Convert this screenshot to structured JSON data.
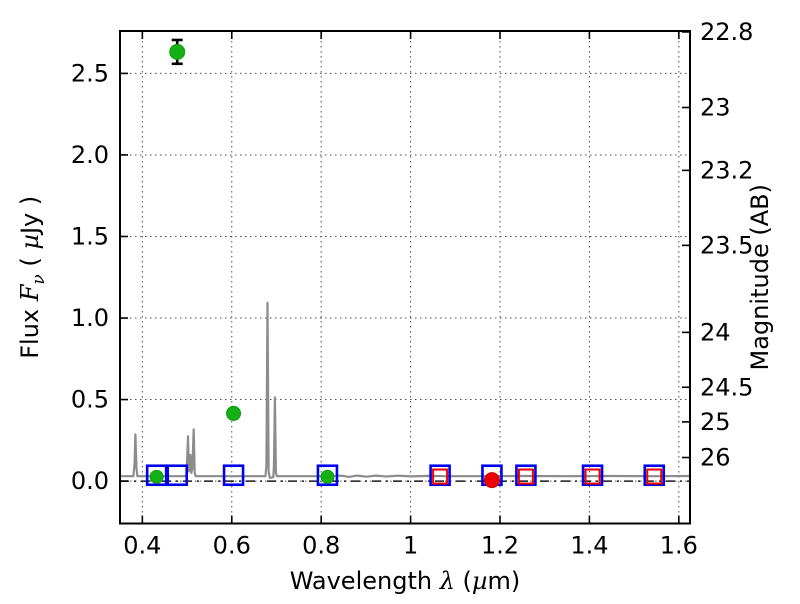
{
  "figure": {
    "background": "#ffffff",
    "frame_color": "#000000"
  },
  "chart_data": {
    "type": "line+scatter",
    "title": "",
    "xlabel_parts": [
      {
        "t": "Wavelength  "
      },
      {
        "t": "λ",
        "i": true
      },
      {
        "t": " ("
      },
      {
        "t": "µ",
        "i": true
      },
      {
        "t": "m)"
      }
    ],
    "ylabel_left_parts": [
      {
        "t": "Flux  "
      },
      {
        "t": "F",
        "i": true
      },
      {
        "t": "ν",
        "i": true,
        "sub": true
      },
      {
        "t": "  ( "
      },
      {
        "t": "µ",
        "i": true
      },
      {
        "t": "Jy )"
      }
    ],
    "ylabel_right_parts": [
      {
        "t": "Magnitude (AB)"
      }
    ],
    "x_axis": {
      "lim": [
        0.35,
        1.625
      ],
      "ticks": [
        {
          "v": 0.4,
          "label": "0.4"
        },
        {
          "v": 0.6,
          "label": "0.6"
        },
        {
          "v": 0.8,
          "label": "0.8"
        },
        {
          "v": 1.0,
          "label": "1"
        },
        {
          "v": 1.2,
          "label": "1.2"
        },
        {
          "v": 1.4,
          "label": "1.4"
        },
        {
          "v": 1.6,
          "label": "1.6"
        }
      ]
    },
    "y_axis_left": {
      "lim": [
        -0.26,
        2.76
      ],
      "ticks": [
        {
          "v": 0.0,
          "label": "0.0"
        },
        {
          "v": 0.5,
          "label": "0.5"
        },
        {
          "v": 1.0,
          "label": "1.0"
        },
        {
          "v": 1.5,
          "label": "1.5"
        },
        {
          "v": 2.0,
          "label": "2.0"
        },
        {
          "v": 2.5,
          "label": "2.5"
        }
      ]
    },
    "y_axis_right": {
      "ab_zeropoint_ujy": 23.9,
      "ticks": [
        {
          "mag": 22.8,
          "label": "22.8"
        },
        {
          "mag": 23.0,
          "label": "23"
        },
        {
          "mag": 23.2,
          "label": "23.2"
        },
        {
          "mag": 23.5,
          "label": "23.5"
        },
        {
          "mag": 24.0,
          "label": "24"
        },
        {
          "mag": 24.5,
          "label": "24.5"
        },
        {
          "mag": 25.0,
          "label": "25"
        },
        {
          "mag": 26.0,
          "label": "26"
        }
      ]
    },
    "grid": {
      "on": true,
      "style": "dotted",
      "color": "#4d4d4d"
    },
    "zero_line": {
      "y": 0.0,
      "style": "dashdot",
      "color": "#1a1a1a"
    },
    "series": {
      "spectrum_model": {
        "type": "line",
        "color": "#8c8c8c",
        "width": 2.2,
        "points": [
          [
            0.35,
            0.03
          ],
          [
            0.38,
            0.03
          ],
          [
            0.3825,
            0.1
          ],
          [
            0.3845,
            0.287
          ],
          [
            0.3868,
            0.08
          ],
          [
            0.389,
            0.03
          ],
          [
            0.42,
            0.03
          ],
          [
            0.46,
            0.03
          ],
          [
            0.49,
            0.03
          ],
          [
            0.4985,
            0.032
          ],
          [
            0.5005,
            0.15
          ],
          [
            0.5022,
            0.274
          ],
          [
            0.504,
            0.06
          ],
          [
            0.5062,
            0.1
          ],
          [
            0.5078,
            0.16
          ],
          [
            0.5095,
            0.05
          ],
          [
            0.512,
            0.08
          ],
          [
            0.5148,
            0.317
          ],
          [
            0.5172,
            0.05
          ],
          [
            0.5195,
            0.03
          ],
          [
            0.56,
            0.03
          ],
          [
            0.62,
            0.03
          ],
          [
            0.66,
            0.03
          ],
          [
            0.6755,
            0.03
          ],
          [
            0.6775,
            0.1
          ],
          [
            0.68,
            1.093
          ],
          [
            0.6825,
            0.06
          ],
          [
            0.6848,
            0.022
          ],
          [
            0.688,
            0.02
          ],
          [
            0.693,
            0.025
          ],
          [
            0.6945,
            0.1
          ],
          [
            0.6965,
            0.514
          ],
          [
            0.6988,
            0.05
          ],
          [
            0.701,
            0.03
          ],
          [
            0.73,
            0.03
          ],
          [
            0.79,
            0.03
          ],
          [
            0.845,
            0.033
          ],
          [
            0.862,
            0.026
          ],
          [
            0.88,
            0.034
          ],
          [
            0.902,
            0.027
          ],
          [
            0.922,
            0.034
          ],
          [
            0.946,
            0.028
          ],
          [
            0.972,
            0.033
          ],
          [
            1.002,
            0.029
          ],
          [
            1.042,
            0.032
          ],
          [
            1.08,
            0.03
          ],
          [
            1.15,
            0.03
          ],
          [
            1.25,
            0.031
          ],
          [
            1.35,
            0.03
          ],
          [
            1.45,
            0.031
          ],
          [
            1.55,
            0.03
          ],
          [
            1.625,
            0.031
          ]
        ]
      },
      "green_photometry": {
        "type": "scatter",
        "marker": "circle",
        "fill": "#15b015",
        "edge": "#0a9e0a",
        "error_color": "#000000",
        "points": [
          {
            "x": 0.478,
            "y": 2.632,
            "yerr": 0.073,
            "r": 7.5
          },
          {
            "x": 0.604,
            "y": 0.415,
            "yerr": 0.022,
            "r": 7.0
          },
          {
            "x": 0.432,
            "y": 0.026,
            "yerr": 0.012,
            "r": 6.5
          },
          {
            "x": 0.814,
            "y": 0.026,
            "yerr": 0.012,
            "r": 6.5
          }
        ]
      },
      "red_photometry": {
        "type": "scatter",
        "marker": "circle",
        "fill": "#ee0000",
        "edge": "#cc0000",
        "error_color": "#000000",
        "points": [
          {
            "x": 1.182,
            "y": 0.006,
            "yerr": 0.012,
            "r": 7.5
          }
        ]
      },
      "blue_squares": {
        "type": "scatter",
        "marker": "square-open",
        "color": "#0000ee",
        "size": 19,
        "stroke": 2.6,
        "y": 0.036,
        "x": [
          0.432,
          0.478,
          0.604,
          0.814,
          1.066,
          1.182,
          1.258,
          1.407,
          1.545
        ]
      },
      "red_squares": {
        "type": "scatter",
        "marker": "square-open",
        "color": "#ee0000",
        "size": 14,
        "stroke": 2.0,
        "y": 0.028,
        "x": [
          1.066,
          1.258,
          1.407,
          1.545
        ]
      }
    }
  }
}
